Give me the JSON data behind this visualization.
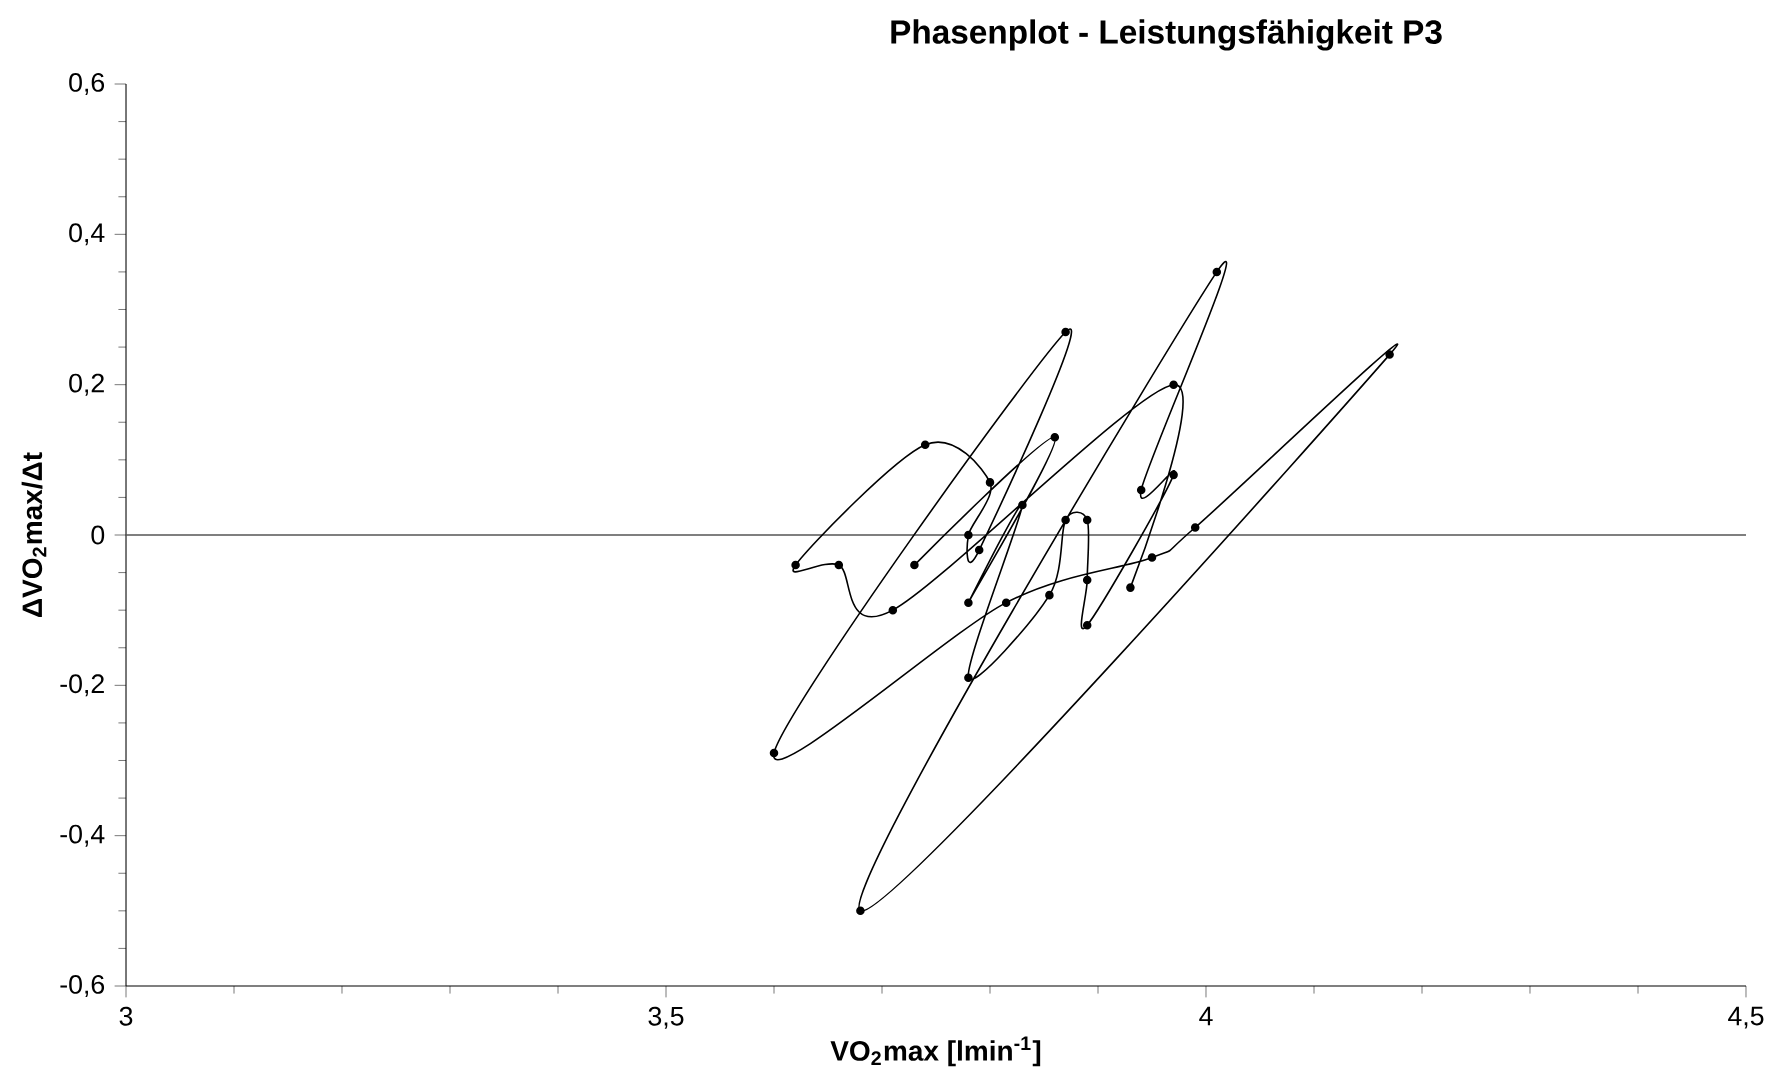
{
  "chart_data": {
    "type": "line",
    "title": "Phasenplot - Leistungsfähigkeit P3",
    "xlabel": "VO$_{2}$max [lmin$^{-1}$]",
    "ylabel": "ΔVO$_{2}$max/Δt",
    "x": [
      3.73,
      3.86,
      3.78,
      3.83,
      3.78,
      3.855,
      3.87,
      3.89,
      3.89,
      3.89,
      3.97,
      3.94,
      4.01,
      3.68,
      4.17,
      3.99,
      3.95,
      3.815,
      3.6,
      3.87,
      3.79,
      3.78,
      3.8,
      3.74,
      3.62,
      3.66,
      3.71,
      3.97,
      3.93
    ],
    "values": [
      -0.04,
      0.13,
      -0.09,
      0.04,
      -0.19,
      -0.08,
      0.02,
      0.02,
      -0.06,
      -0.12,
      0.08,
      0.06,
      0.35,
      -0.5,
      0.24,
      0.01,
      -0.03,
      -0.09,
      -0.29,
      0.27,
      -0.02,
      0.0,
      0.07,
      0.12,
      -0.04,
      -0.04,
      -0.1,
      0.2,
      -0.07
    ],
    "color": "#000000",
    "marker": "circle",
    "line_style": "solid",
    "xlim": [
      3,
      4.5
    ],
    "ylim": [
      -0.6,
      0.6
    ],
    "xticks": [
      3,
      {
        "value": 3.5,
        "label": "3,5"
      },
      4,
      {
        "value": 4.5,
        "label": "4,5"
      }
    ],
    "yticks": [
      {
        "value": -0.6,
        "label": "-0,6"
      },
      {
        "value": -0.4,
        "label": "-0,4"
      },
      {
        "value": -0.2,
        "label": "-0,2"
      },
      0,
      {
        "value": 0.2,
        "label": "0,2"
      },
      {
        "value": 0.4,
        "label": "0,4"
      },
      {
        "value": 0.6,
        "label": "0,6"
      }
    ],
    "ref_lines": [
      {
        "axis": "y",
        "value": 0,
        "color": "#555555"
      }
    ]
  }
}
